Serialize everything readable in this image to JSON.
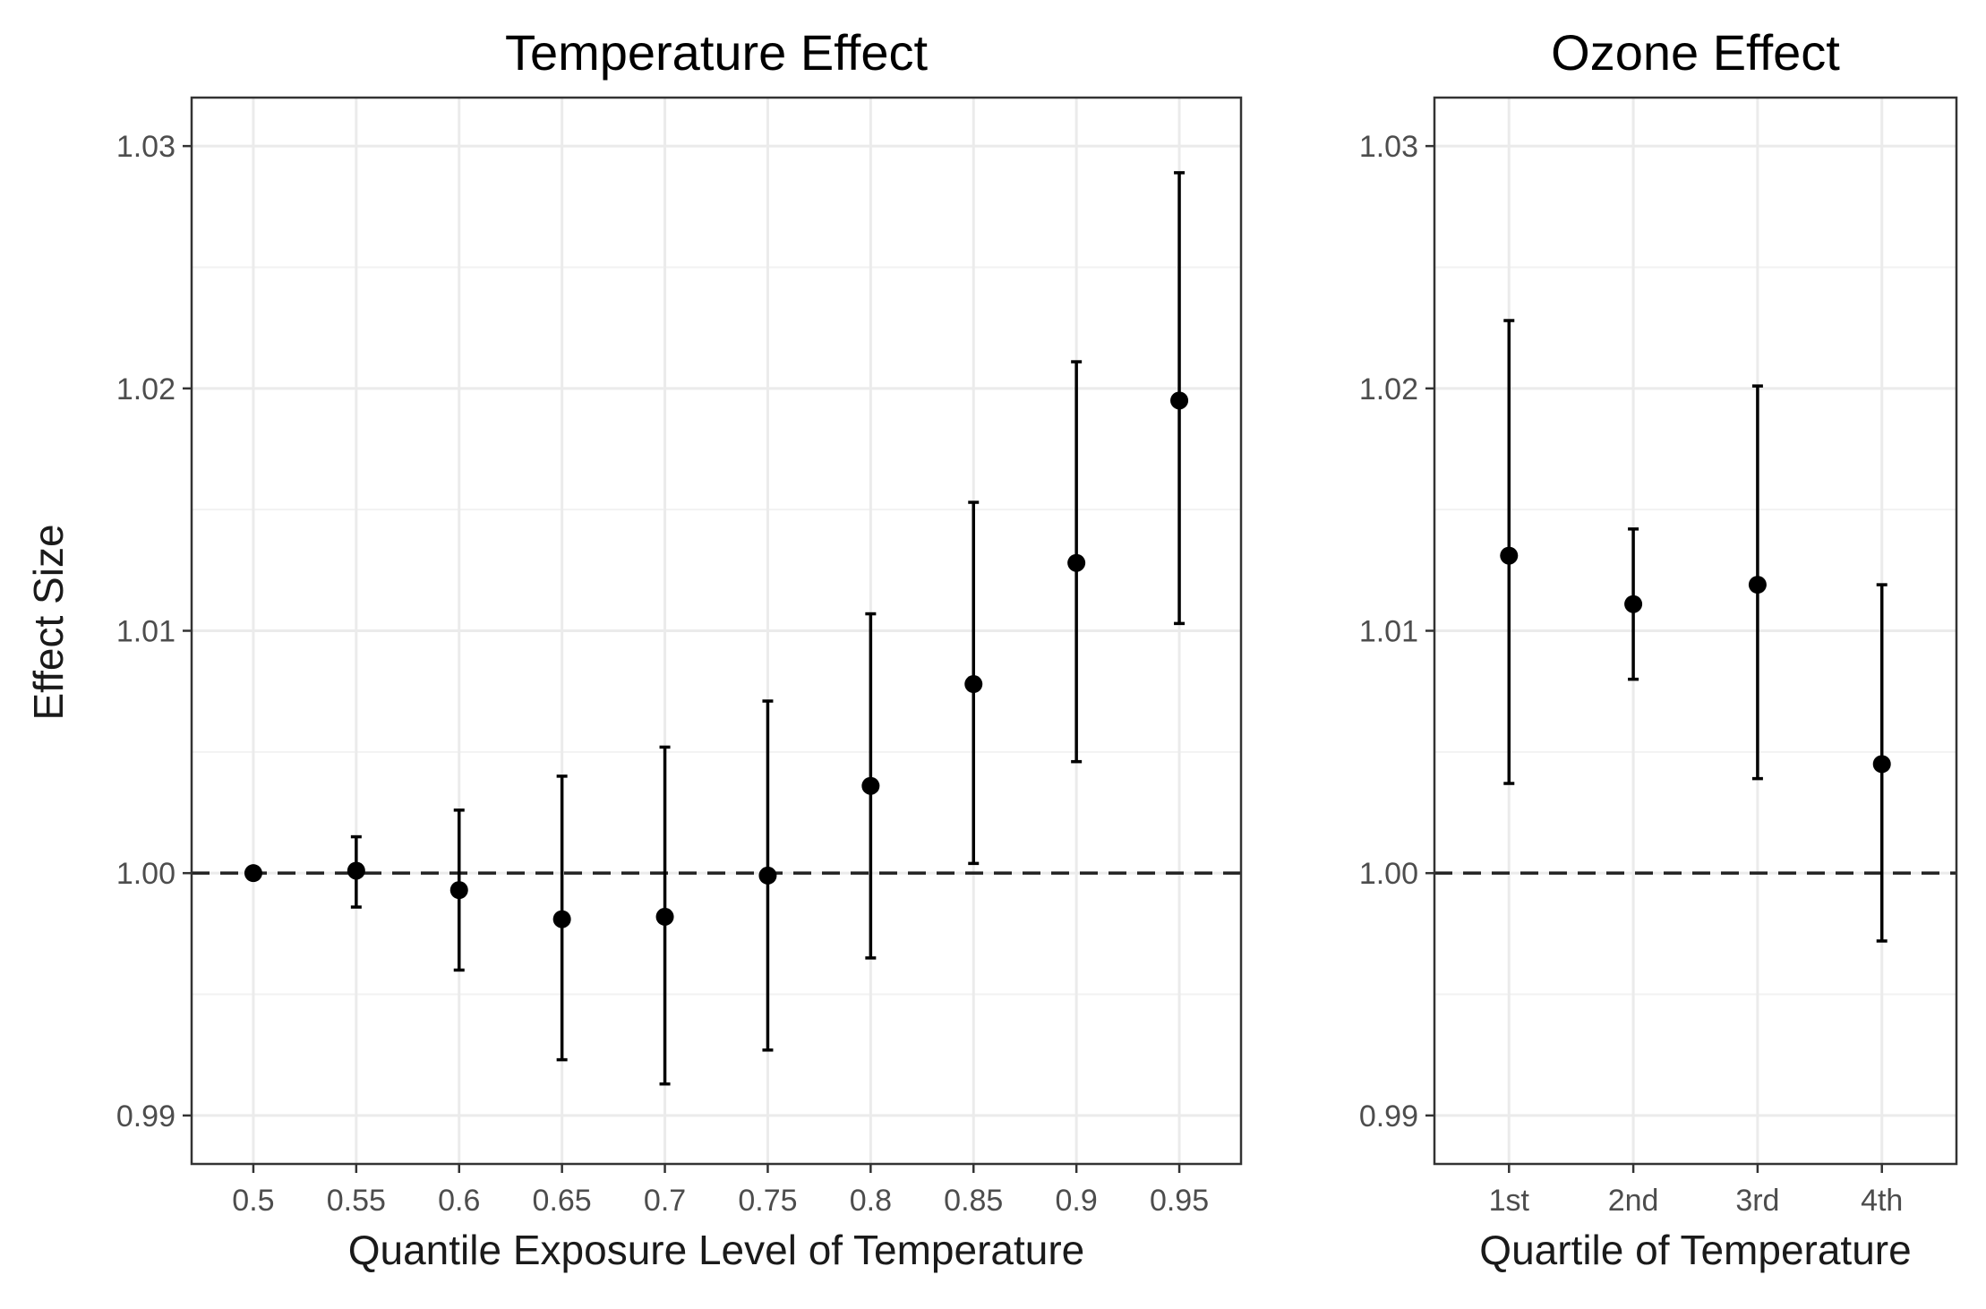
{
  "y_axis_title": "Effect Size",
  "chart_data": [
    {
      "type": "scatter",
      "title": "Temperature Effect",
      "xlabel": "Quantile Exposure Level of Temperature",
      "ylabel": "Effect Size",
      "categories": [
        "0.5",
        "0.55",
        "0.6",
        "0.65",
        "0.7",
        "0.75",
        "0.8",
        "0.85",
        "0.9",
        "0.95"
      ],
      "values": [
        1.0,
        1.0001,
        0.9993,
        0.9981,
        0.9982,
        0.9999,
        1.0036,
        1.0078,
        1.0128,
        1.0195
      ],
      "lower": [
        1.0,
        0.9986,
        0.996,
        0.9923,
        0.9913,
        0.9927,
        0.9965,
        1.0004,
        1.0046,
        1.0103
      ],
      "upper": [
        1.0,
        1.0015,
        1.0026,
        1.004,
        1.0052,
        1.0071,
        1.0107,
        1.0153,
        1.0211,
        1.0289
      ],
      "reference_line": 1.0,
      "ylim": [
        0.988,
        1.032
      ],
      "yticks": [
        "0.99",
        "1.00",
        "1.01",
        "1.02",
        "1.03"
      ],
      "grid": true
    },
    {
      "type": "scatter",
      "title": "Ozone Effect",
      "xlabel": "Quartile of Temperature",
      "ylabel": "",
      "categories": [
        "1st",
        "2nd",
        "3rd",
        "4th"
      ],
      "values": [
        1.0131,
        1.0111,
        1.0119,
        1.0045
      ],
      "lower": [
        1.0037,
        1.008,
        1.0039,
        0.9972
      ],
      "upper": [
        1.0228,
        1.0142,
        1.0201,
        1.0119
      ],
      "reference_line": 1.0,
      "ylim": [
        0.988,
        1.032
      ],
      "yticks": [
        "0.99",
        "1.00",
        "1.01",
        "1.02",
        "1.03"
      ],
      "grid": true
    }
  ]
}
